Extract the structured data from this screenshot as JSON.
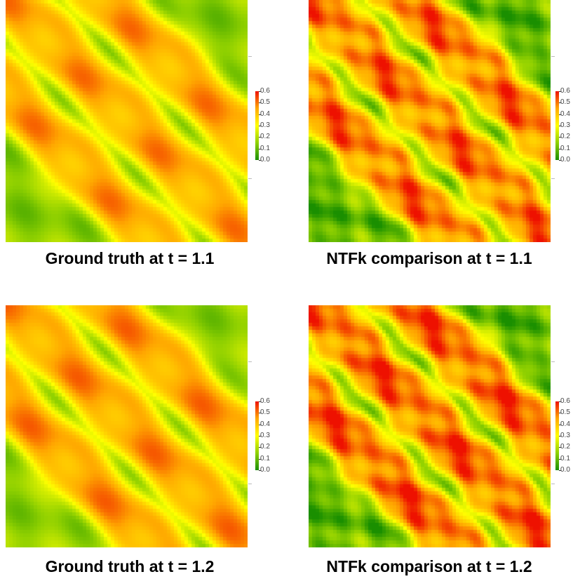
{
  "chart_data": [
    {
      "type": "heatmap",
      "title": "Ground truth at t = 1.1",
      "colorbar": {
        "ticks": [
          "0.0",
          "0.1",
          "0.2",
          "0.3",
          "0.4",
          "0.5",
          "0.6"
        ],
        "range": [
          0.0,
          0.6
        ],
        "colors": [
          "#1a8f00",
          "#8fd000",
          "#ffff00",
          "#ffa800",
          "#ee1100"
        ]
      },
      "field": {
        "diagonal_bands": 3,
        "band_value": 0.45,
        "background_value": 0.15,
        "variant": "ground_truth",
        "t": 1.1
      }
    },
    {
      "type": "heatmap",
      "title": "NTFk comparison at t = 1.1",
      "colorbar": {
        "ticks": [
          "0.0",
          "0.1",
          "0.2",
          "0.3",
          "0.4",
          "0.5",
          "0.6"
        ],
        "range": [
          0.0,
          0.6
        ],
        "colors": [
          "#1a8f00",
          "#8fd000",
          "#ffff00",
          "#ffa800",
          "#ee1100"
        ]
      },
      "field": {
        "diagonal_bands": 3,
        "band_value": 0.5,
        "background_value": 0.1,
        "variant": "ntfk",
        "t": 1.1
      }
    },
    {
      "type": "heatmap",
      "title": "Ground truth at t = 1.2",
      "colorbar": {
        "ticks": [
          "0.0",
          "0.1",
          "0.2",
          "0.3",
          "0.4",
          "0.5",
          "0.6"
        ],
        "range": [
          0.0,
          0.6
        ],
        "colors": [
          "#1a8f00",
          "#8fd000",
          "#ffff00",
          "#ffa800",
          "#ee1100"
        ]
      },
      "field": {
        "diagonal_bands": 3,
        "band_value": 0.46,
        "background_value": 0.16,
        "variant": "ground_truth",
        "t": 1.2
      }
    },
    {
      "type": "heatmap",
      "title": "NTFk comparison at t = 1.2",
      "colorbar": {
        "ticks": [
          "0.0",
          "0.1",
          "0.2",
          "0.3",
          "0.4",
          "0.5",
          "0.6"
        ],
        "range": [
          0.0,
          0.6
        ],
        "colors": [
          "#1a8f00",
          "#8fd000",
          "#ffff00",
          "#ffa800",
          "#ee1100"
        ]
      },
      "field": {
        "diagonal_bands": 3,
        "band_value": 0.52,
        "background_value": 0.1,
        "variant": "ntfk",
        "t": 1.2
      }
    }
  ]
}
